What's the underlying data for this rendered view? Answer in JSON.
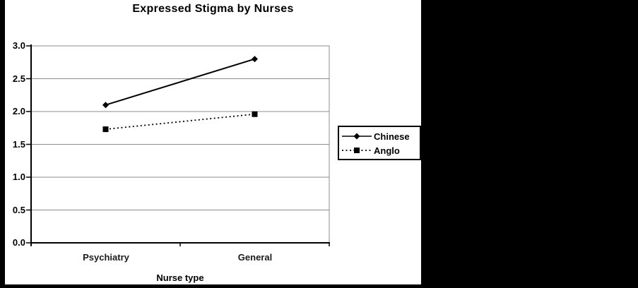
{
  "chart_data": {
    "type": "line",
    "title": "Expressed Stigma by Nurses",
    "categories": [
      "Psychiatry",
      "General"
    ],
    "series": [
      {
        "name": "Chinese",
        "values": [
          2.1,
          2.8
        ],
        "line_style": "solid",
        "marker": "diamond"
      },
      {
        "name": "Anglo",
        "values": [
          1.73,
          1.96
        ],
        "line_style": "dotted",
        "marker": "square"
      }
    ],
    "xlabel": "Nurse type",
    "ylabel": "",
    "ylim": [
      0.0,
      3.0
    ],
    "ytick_step": 0.5,
    "ytick_labels": [
      "0.0",
      "0.5",
      "1.0",
      "1.5",
      "2.0",
      "2.5",
      "3.0"
    ],
    "grid": true,
    "legend_position": "right",
    "colors": {
      "series": "#000000",
      "gridline": "#8c8c8c",
      "plot_border": "#8c8c8c",
      "axis": "#000000",
      "text": "#000000",
      "chart_background": "#ffffff",
      "surround_background": "#000000"
    }
  }
}
